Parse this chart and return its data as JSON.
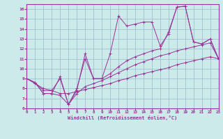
{
  "xlabel": "Windchill (Refroidissement éolien,°C)",
  "bg_color": "#cceaea",
  "grid_color": "#9ab8c8",
  "line_color": "#993399",
  "xlim": [
    0,
    23
  ],
  "ylim": [
    6,
    16.5
  ],
  "xticks": [
    0,
    1,
    2,
    3,
    4,
    5,
    6,
    7,
    8,
    9,
    10,
    11,
    12,
    13,
    14,
    15,
    16,
    17,
    18,
    19,
    20,
    21,
    22,
    23
  ],
  "yticks": [
    6,
    7,
    8,
    9,
    10,
    11,
    12,
    13,
    14,
    15,
    16
  ],
  "series1_x": [
    0,
    1,
    2,
    3,
    4,
    5,
    6,
    7,
    8,
    9,
    10,
    11,
    12,
    13,
    14,
    15,
    16,
    17,
    18,
    19,
    20,
    21,
    22,
    23
  ],
  "series1_y": [
    9.0,
    8.6,
    7.5,
    7.5,
    9.2,
    6.4,
    7.8,
    11.5,
    9.0,
    9.0,
    11.5,
    15.3,
    14.3,
    14.5,
    14.7,
    14.7,
    12.3,
    13.5,
    16.2,
    16.3,
    12.7,
    12.5,
    13.0,
    11.0
  ],
  "series2_x": [
    0,
    1,
    2,
    3,
    4,
    5,
    6,
    7,
    8,
    9,
    10,
    11,
    12,
    13,
    14,
    15,
    16,
    17,
    18,
    19,
    20,
    21,
    22,
    23
  ],
  "series2_y": [
    9.0,
    8.6,
    7.5,
    7.5,
    7.3,
    6.4,
    7.5,
    8.2,
    8.5,
    8.8,
    9.2,
    9.6,
    10.0,
    10.4,
    10.7,
    11.0,
    11.3,
    11.5,
    11.8,
    12.0,
    12.2,
    12.4,
    12.6,
    11.0
  ],
  "series3_x": [
    0,
    1,
    2,
    3,
    4,
    5,
    6,
    7,
    8,
    9,
    10,
    11,
    12,
    13,
    14,
    15,
    16,
    17,
    18,
    19,
    20,
    21,
    22,
    23
  ],
  "series3_y": [
    9.0,
    8.6,
    7.8,
    7.8,
    9.0,
    6.4,
    8.0,
    11.0,
    9.0,
    9.0,
    9.5,
    10.2,
    10.8,
    11.2,
    11.5,
    11.8,
    12.0,
    13.7,
    16.2,
    16.3,
    12.7,
    12.5,
    13.0,
    11.0
  ],
  "series4_x": [
    0,
    1,
    2,
    3,
    4,
    5,
    6,
    7,
    8,
    9,
    10,
    11,
    12,
    13,
    14,
    15,
    16,
    17,
    18,
    19,
    20,
    21,
    22,
    23
  ],
  "series4_y": [
    9.0,
    8.5,
    8.0,
    7.8,
    7.5,
    7.5,
    7.7,
    7.9,
    8.1,
    8.3,
    8.5,
    8.8,
    9.0,
    9.3,
    9.5,
    9.7,
    9.9,
    10.1,
    10.4,
    10.6,
    10.8,
    11.0,
    11.2,
    11.0
  ]
}
